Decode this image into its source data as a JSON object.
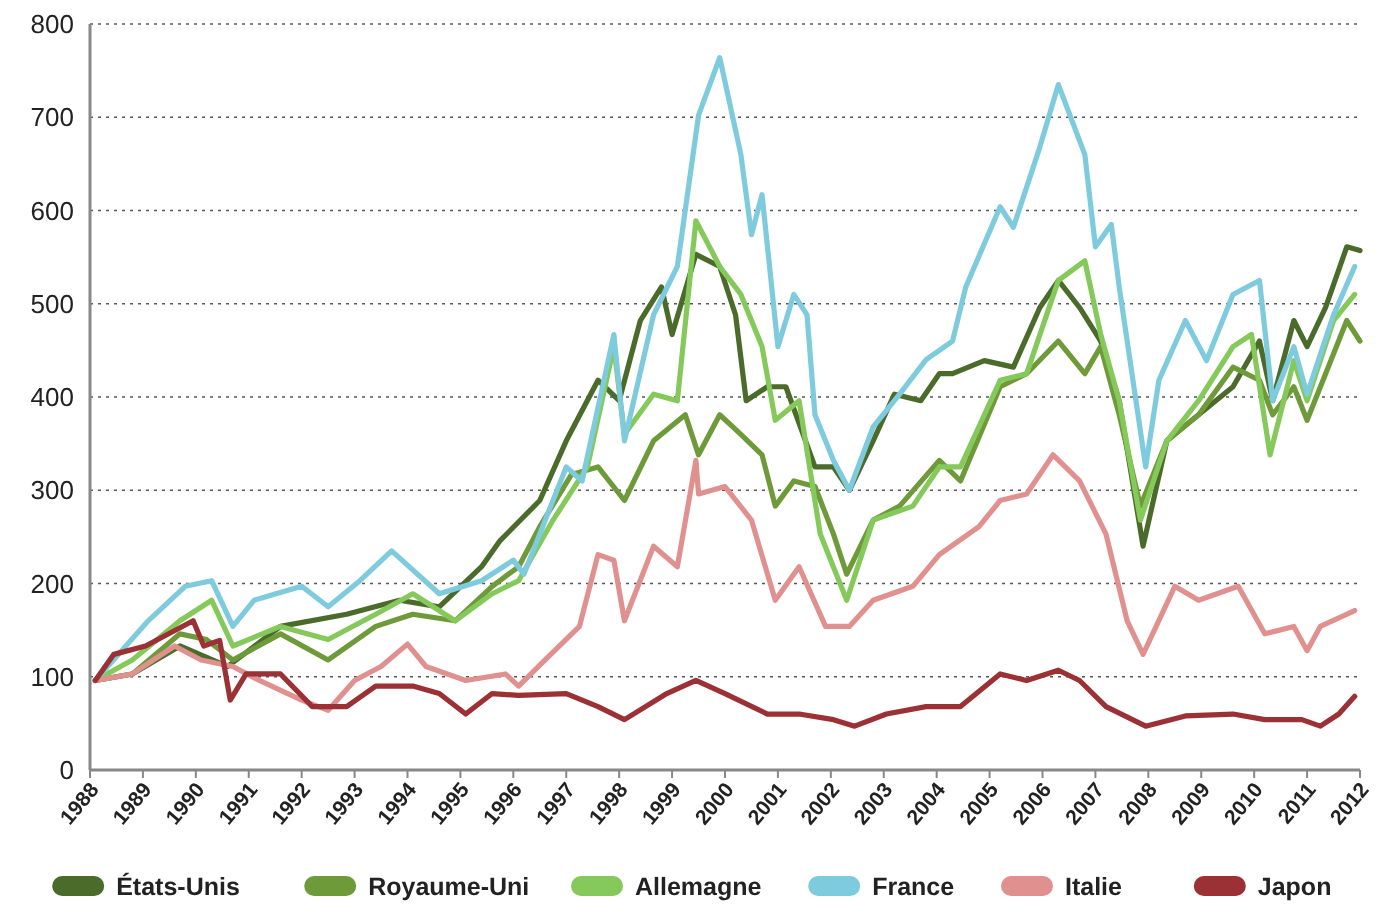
{
  "chart_data": {
    "type": "line",
    "xlim": [
      1988,
      2012
    ],
    "xticks": [
      1988,
      1989,
      1990,
      1991,
      1992,
      1993,
      1994,
      1995,
      1996,
      1997,
      1998,
      1999,
      2000,
      2001,
      2002,
      2003,
      2004,
      2005,
      2006,
      2007,
      2008,
      2009,
      2010,
      2011,
      2012
    ],
    "ylim": [
      0,
      800
    ],
    "yticks": [
      0,
      100,
      200,
      300,
      400,
      500,
      600,
      700,
      800
    ],
    "grid": "y",
    "legend": "bottom",
    "line_style": "solid",
    "series": [
      {
        "name": "États-Unis",
        "color": "#4a6b2a",
        "x": [
          1988.1,
          1988.8,
          1989.7,
          1990.6,
          1991.6,
          1992.85,
          1993.85,
          1994.6,
          1995.4,
          1995.75,
          1996.5,
          1997,
          1997.6,
          1998,
          1998.4,
          1998.8,
          1999,
          1999.45,
          1999.9,
          2000.2,
          2000.4,
          2000.8,
          2001.15,
          2001.7,
          2002.05,
          2002.35,
          2002.8,
          2003.2,
          2003.7,
          2004.05,
          2004.3,
          2004.9,
          2005.45,
          2005.95,
          2006.3,
          2006.7,
          2007.1,
          2007.45,
          2007.9,
          2008.35,
          2008.95,
          2009.6,
          2010.1,
          2010.35,
          2010.75,
          2011,
          2011.35,
          2011.75,
          2012
        ],
        "values": [
          96,
          103,
          133,
          111,
          154,
          167,
          182,
          175,
          218,
          246,
          289,
          353,
          418,
          396,
          482,
          518,
          467,
          553,
          540,
          488,
          396,
          411,
          411,
          325,
          325,
          300,
          353,
          403,
          396,
          425,
          425,
          439,
          432,
          496,
          525,
          496,
          460,
          396,
          240,
          353,
          381,
          411,
          460,
          396,
          482,
          454,
          496,
          561,
          557
        ]
      },
      {
        "name": "Royaume-Uni",
        "color": "#6f9a3a",
        "x": [
          1988.1,
          1988.8,
          1989.7,
          1990.2,
          1990.7,
          1991.6,
          1992.5,
          1993.4,
          1994.1,
          1994.9,
          1995.6,
          1996.1,
          1996.5,
          1997.1,
          1997.6,
          1998.1,
          1998.65,
          1999.25,
          1999.5,
          1999.9,
          2000.3,
          2000.7,
          2000.95,
          2001.3,
          2001.7,
          2002.05,
          2002.3,
          2002.8,
          2003.3,
          2004.05,
          2004.45,
          2005.2,
          2005.7,
          2006.3,
          2006.8,
          2007.1,
          2007.45,
          2007.85,
          2008.35,
          2008.95,
          2009.6,
          2010.1,
          2010.35,
          2010.75,
          2011,
          2011.35,
          2011.75,
          2012
        ],
        "values": [
          96,
          103,
          146,
          140,
          118,
          146,
          118,
          154,
          167,
          160,
          197,
          218,
          261,
          317,
          325,
          289,
          353,
          381,
          338,
          381,
          360,
          338,
          283,
          310,
          304,
          253,
          210,
          268,
          283,
          332,
          310,
          411,
          425,
          460,
          425,
          454,
          381,
          283,
          353,
          381,
          432,
          418,
          381,
          411,
          375,
          425,
          482,
          460
        ]
      },
      {
        "name": "Allemagne",
        "color": "#84c95a",
        "x": [
          1988.1,
          1988.8,
          1989.7,
          1990.3,
          1990.7,
          1991.6,
          1992.5,
          1993.4,
          1994.1,
          1994.9,
          1995.6,
          1996.1,
          1996.75,
          1997.4,
          1997.9,
          1998.1,
          1998.65,
          1999.1,
          1999.45,
          1999.9,
          2000.3,
          2000.7,
          2000.95,
          2001.4,
          2001.8,
          2002.3,
          2002.8,
          2003.55,
          2004.05,
          2004.45,
          2005.2,
          2005.7,
          2006.3,
          2006.8,
          2007.1,
          2007.45,
          2007.85,
          2008.35,
          2008.95,
          2009.6,
          2009.95,
          2010.3,
          2010.75,
          2011,
          2011.5,
          2011.9
        ],
        "values": [
          96,
          118,
          160,
          182,
          133,
          154,
          140,
          167,
          189,
          160,
          189,
          203,
          268,
          325,
          454,
          360,
          403,
          396,
          589,
          540,
          510,
          454,
          375,
          396,
          253,
          182,
          268,
          283,
          325,
          325,
          418,
          425,
          525,
          546,
          467,
          396,
          268,
          353,
          396,
          454,
          467,
          338,
          439,
          396,
          482,
          510
        ]
      },
      {
        "name": "France",
        "color": "#7dcbdc",
        "x": [
          1988.1,
          1989.1,
          1989.8,
          1990.3,
          1990.7,
          1991.1,
          1992,
          1992.5,
          1993.1,
          1993.7,
          1994.6,
          1995.4,
          1996,
          1996.2,
          1997,
          1997.3,
          1997.9,
          1998.1,
          1998.65,
          1999.1,
          1999.5,
          1999.9,
          2000.3,
          2000.5,
          2000.7,
          2001,
          2001.3,
          2001.55,
          2001.7,
          2002.05,
          2002.35,
          2002.8,
          2003.3,
          2003.8,
          2004.3,
          2004.55,
          2005.2,
          2005.45,
          2005.95,
          2006.3,
          2006.8,
          2007,
          2007.3,
          2007.45,
          2007.95,
          2008.2,
          2008.7,
          2009.1,
          2009.6,
          2010.1,
          2010.35,
          2010.75,
          2011,
          2011.5,
          2011.9
        ],
        "values": [
          96,
          160,
          197,
          203,
          154,
          182,
          197,
          175,
          203,
          235,
          189,
          203,
          225,
          210,
          325,
          310,
          467,
          353,
          488,
          540,
          702,
          764,
          660,
          574,
          617,
          454,
          510,
          488,
          381,
          332,
          300,
          368,
          403,
          440,
          460,
          518,
          604,
          582,
          668,
          735,
          660,
          561,
          585,
          518,
          325,
          418,
          482,
          439,
          510,
          525,
          396,
          454,
          403,
          488,
          540
        ]
      },
      {
        "name": "Italie",
        "color": "#e0918f",
        "x": [
          1988.1,
          1988.8,
          1989.6,
          1990.1,
          1990.7,
          1991.2,
          1992,
          1992.5,
          1993,
          1993.5,
          1994,
          1994.35,
          1995.1,
          1995.85,
          1996.1,
          1996.6,
          1997.25,
          1997.6,
          1997.9,
          1998.1,
          1998.65,
          1999.1,
          1999.45,
          1999.5,
          2000,
          2000.5,
          2000.95,
          2001.4,
          2001.9,
          2002.35,
          2002.8,
          2003.55,
          2004.05,
          2004.8,
          2005.2,
          2005.7,
          2006.2,
          2006.7,
          2007.2,
          2007.6,
          2007.9,
          2008.5,
          2008.95,
          2009.7,
          2010.2,
          2010.75,
          2011,
          2011.25,
          2011.9
        ],
        "values": [
          96,
          103,
          133,
          118,
          111,
          96,
          75,
          64,
          96,
          111,
          135,
          111,
          96,
          103,
          90,
          118,
          154,
          231,
          225,
          160,
          240,
          218,
          332,
          296,
          304,
          268,
          182,
          218,
          154,
          154,
          182,
          197,
          231,
          261,
          289,
          296,
          338,
          310,
          253,
          160,
          124,
          197,
          182,
          197,
          146,
          154,
          128,
          154,
          171
        ]
      },
      {
        "name": "Japon",
        "color": "#9b3035",
        "x": [
          1988.1,
          1988.45,
          1989.05,
          1989.95,
          1990.15,
          1990.45,
          1990.65,
          1990.95,
          1991.6,
          1992.2,
          1992.85,
          1993.4,
          1994.1,
          1994.6,
          1995.1,
          1995.6,
          1996.1,
          1997,
          1997.6,
          1998.1,
          1998.9,
          1999.45,
          2000,
          2000.8,
          2001.4,
          2002.05,
          2002.45,
          2003.05,
          2003.8,
          2004.45,
          2005.2,
          2005.7,
          2006.3,
          2006.7,
          2007.2,
          2007.7,
          2007.95,
          2008.7,
          2009.6,
          2010.2,
          2010.9,
          2011.25,
          2011.6,
          2011.9
        ],
        "values": [
          96,
          124,
          133,
          160,
          133,
          139,
          75,
          103,
          103,
          68,
          68,
          90,
          90,
          82,
          60,
          82,
          80,
          82,
          68,
          54,
          82,
          96,
          82,
          60,
          60,
          54,
          47,
          60,
          68,
          68,
          103,
          96,
          107,
          96,
          68,
          54,
          47,
          58,
          60,
          54,
          54,
          47,
          60,
          79
        ]
      }
    ]
  }
}
